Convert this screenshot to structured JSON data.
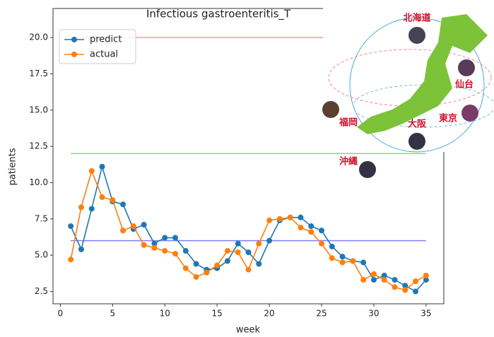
{
  "chart_data": {
    "type": "line",
    "title": "Infectious gastroenteritis_T",
    "xlabel": "week",
    "ylabel": "patients",
    "x": [
      1,
      2,
      3,
      4,
      5,
      6,
      7,
      8,
      9,
      10,
      11,
      12,
      13,
      14,
      15,
      16,
      17,
      18,
      19,
      20,
      21,
      22,
      23,
      24,
      25,
      26,
      27,
      28,
      29,
      30,
      31,
      32,
      33,
      34,
      35
    ],
    "series": [
      {
        "name": "predict",
        "color": "#1f77b4",
        "values": [
          7.0,
          5.4,
          8.2,
          11.1,
          8.7,
          8.5,
          6.8,
          7.1,
          5.8,
          6.2,
          6.2,
          5.3,
          4.4,
          4.0,
          4.1,
          4.6,
          5.8,
          5.2,
          4.4,
          6.0,
          7.4,
          7.6,
          7.6,
          7.0,
          6.7,
          5.6,
          4.9,
          4.6,
          4.5,
          3.3,
          3.6,
          3.3,
          2.9,
          2.5,
          3.3
        ]
      },
      {
        "name": "actual",
        "color": "#ff7f0e",
        "values": [
          4.7,
          8.3,
          10.8,
          9.0,
          8.8,
          6.7,
          7.0,
          5.7,
          5.5,
          5.3,
          5.1,
          4.1,
          3.5,
          3.8,
          4.3,
          5.3,
          5.2,
          4.0,
          5.8,
          7.4,
          7.5,
          7.6,
          6.9,
          6.6,
          5.8,
          4.8,
          4.5,
          4.6,
          3.3,
          3.7,
          3.3,
          2.8,
          2.6,
          3.2,
          3.6
        ]
      }
    ],
    "reference_lines": [
      {
        "value": 20,
        "color": "#ff9999"
      },
      {
        "value": 12,
        "color": "#8fcf8f"
      },
      {
        "value": 6,
        "color": "#8080ff"
      }
    ],
    "xlim": [
      -0.7,
      36.7
    ],
    "ylim": [
      1.65,
      22.0
    ],
    "xticks": [
      0,
      5,
      10,
      15,
      20,
      25,
      30,
      35
    ],
    "yticks": [
      2.5,
      {
        "value": 5,
        "label": "5.0"
      },
      7.5,
      {
        "value": 10,
        "label": "10.0"
      },
      12.5,
      {
        "value": 15,
        "label": "15.0"
      },
      17.5,
      {
        "value": 20,
        "label": "20.0"
      }
    ],
    "legend": "upper left",
    "overlay_labels": [
      "北海道",
      "仙台",
      "東京",
      "大阪",
      "福岡",
      "沖縄"
    ]
  }
}
